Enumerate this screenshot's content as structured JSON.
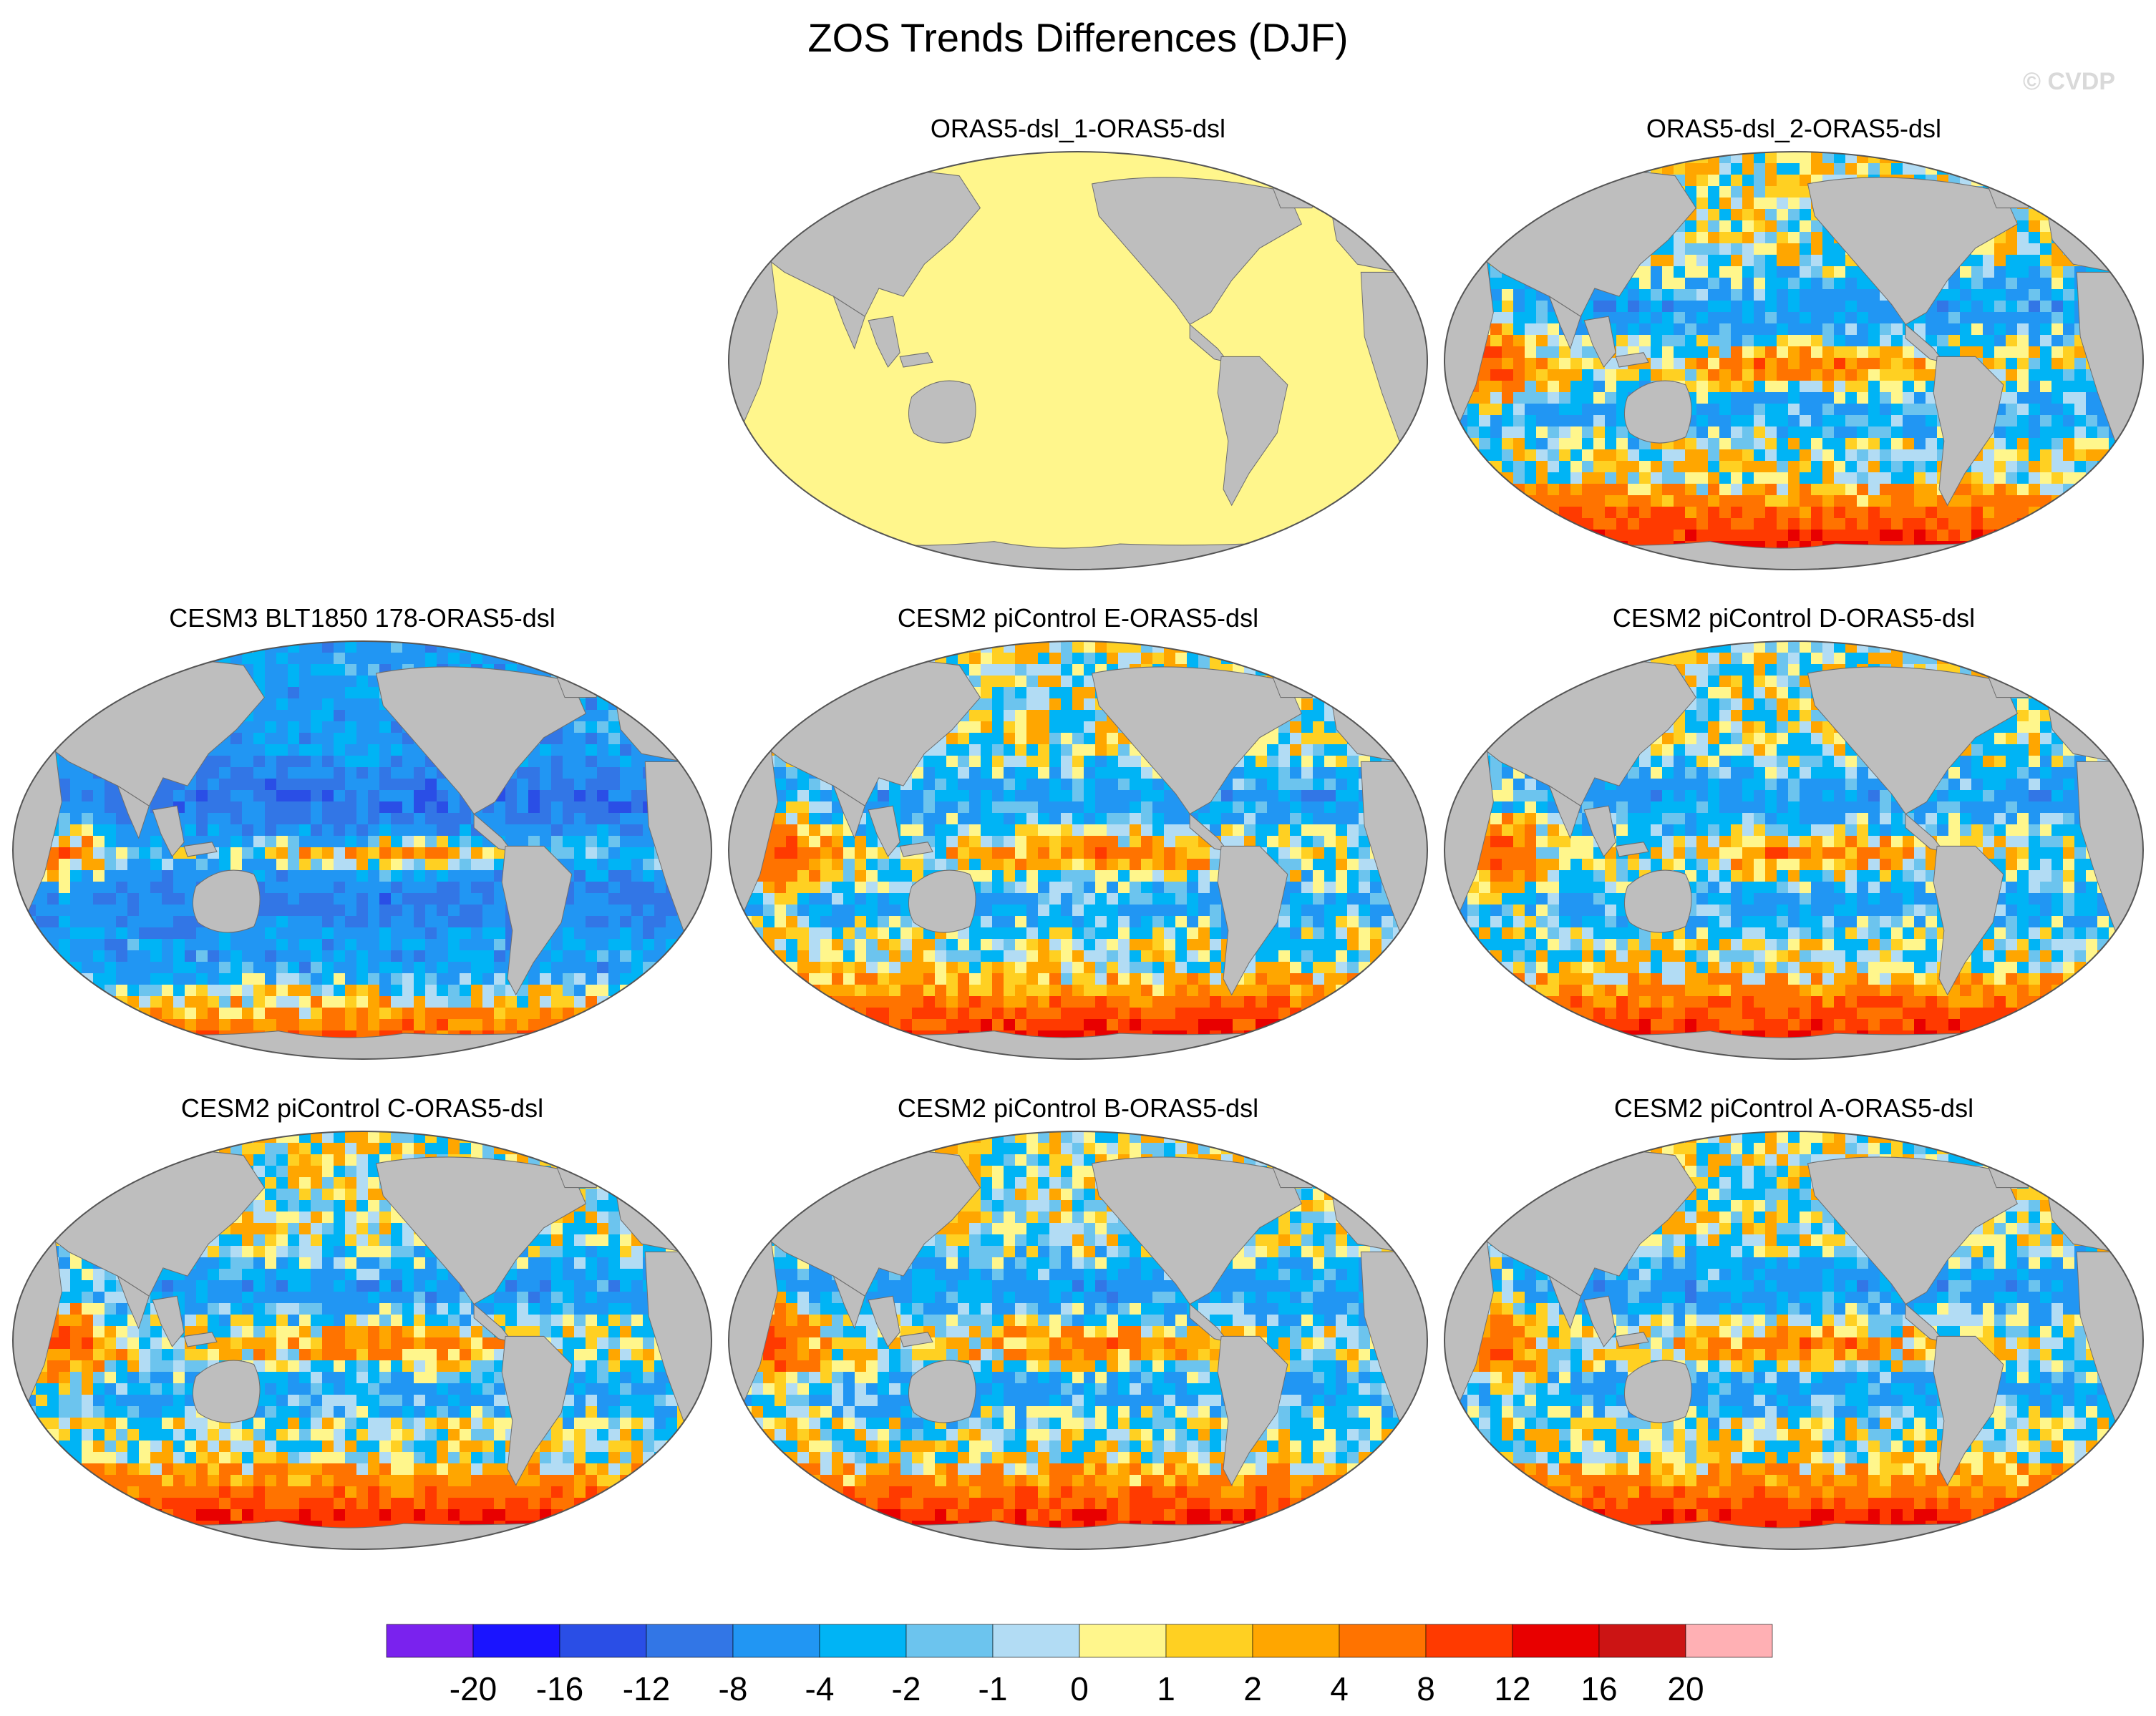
{
  "figure": {
    "title": "ZOS Trends Differences (DJF)",
    "copyright": "© CVDP"
  },
  "panels": [
    {
      "title": "ORAS5-dsl_1-ORAS5-dsl",
      "pattern": "uniform-zero"
    },
    {
      "title": "ORAS5-dsl_2-ORAS5-dsl",
      "pattern": "mixed"
    },
    {
      "title": "CESM3 BLT1850 178-ORAS5-dsl",
      "pattern": "mostly-negative"
    },
    {
      "title": "CESM2 piControl E-ORAS5-dsl",
      "pattern": "mixed"
    },
    {
      "title": "CESM2 piControl D-ORAS5-dsl",
      "pattern": "mixed"
    },
    {
      "title": "CESM2 piControl C-ORAS5-dsl",
      "pattern": "mixed"
    },
    {
      "title": "CESM2 piControl B-ORAS5-dsl",
      "pattern": "mixed"
    },
    {
      "title": "CESM2 piControl A-ORAS5-dsl",
      "pattern": "mixed"
    }
  ],
  "colorbar": {
    "labels": [
      "-20",
      "-16",
      "-12",
      "-8",
      "-4",
      "-2",
      "-1",
      "0",
      "1",
      "2",
      "4",
      "8",
      "12",
      "16",
      "20"
    ],
    "colors": [
      "#7a22ee",
      "#1a14ff",
      "#2a4ee6",
      "#3276e6",
      "#2196f3",
      "#00b4f5",
      "#6cc4ee",
      "#b2dcf4",
      "#fff68c",
      "#ffd022",
      "#ffa600",
      "#ff7300",
      "#ff3a00",
      "#e80000",
      "#cc1414",
      "#ffb0b4"
    ]
  },
  "map": {
    "land_color": "#bebebe",
    "zero_color": "#fff68c"
  }
}
